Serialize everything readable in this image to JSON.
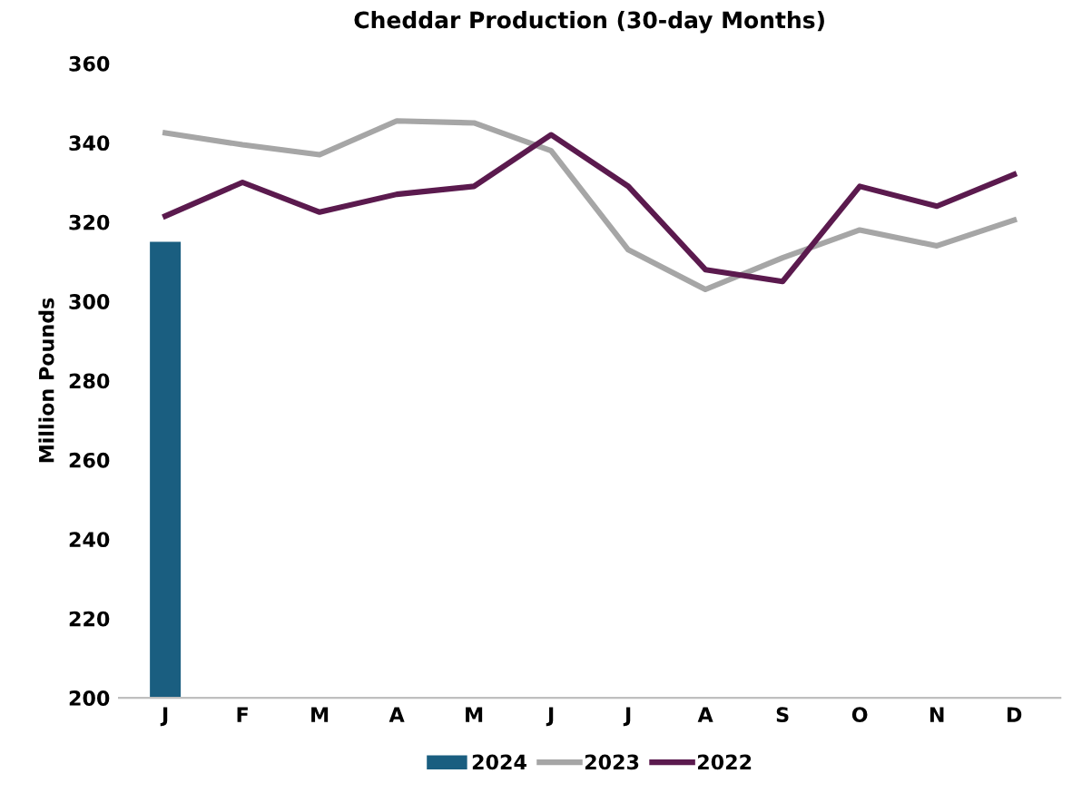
{
  "chart_data": {
    "type": "bar",
    "title": "Cheddar Production (30-day Months)",
    "ylabel": "Million Pounds",
    "categories": [
      "J",
      "F",
      "M",
      "A",
      "M",
      "J",
      "J",
      "A",
      "S",
      "O",
      "N",
      "D"
    ],
    "series": [
      {
        "name": "2024",
        "color": "#1a5e80",
        "values": [
          315,
          null,
          null,
          null,
          null,
          null,
          null,
          null,
          null,
          null,
          null,
          null
        ]
      },
      {
        "name": "2023",
        "type": "line",
        "color": "#a6a6a6",
        "values": [
          342.5,
          339.5,
          337,
          345.5,
          345,
          338,
          313,
          303,
          311,
          318,
          314,
          320.5
        ]
      },
      {
        "name": "2022",
        "type": "line",
        "color": "#5b1a4e",
        "values": [
          321.5,
          330,
          322.5,
          327,
          329,
          342,
          329,
          308,
          305,
          329,
          324,
          332
        ]
      }
    ],
    "ylim": [
      200,
      360
    ],
    "yticks": [
      200,
      220,
      240,
      260,
      280,
      300,
      320,
      340,
      360
    ],
    "grid": false,
    "legend": "bottom",
    "marker": "none"
  }
}
